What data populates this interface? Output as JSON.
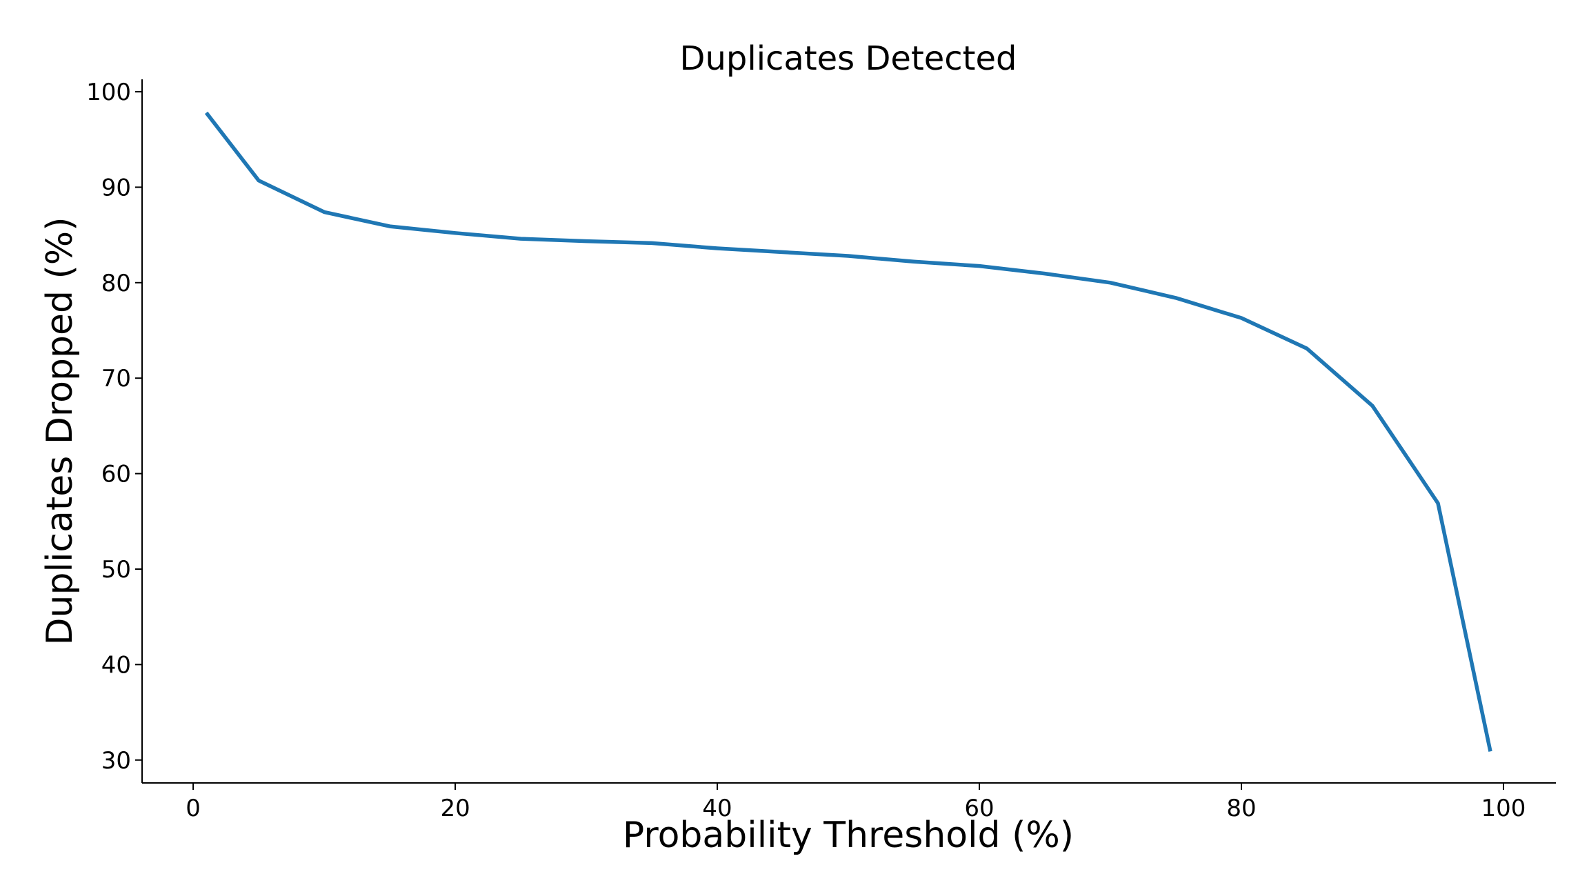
{
  "chart_data": {
    "type": "line",
    "title": "Duplicates Detected",
    "xlabel": "Probability Threshold (%)",
    "ylabel": "Duplicates Dropped (%)",
    "xlim": [
      -3.9,
      104
    ],
    "ylim": [
      27.6,
      101.3
    ],
    "xticks": [
      0,
      20,
      40,
      60,
      80,
      100
    ],
    "yticks": [
      30,
      40,
      50,
      60,
      70,
      80,
      90,
      100
    ],
    "grid": false,
    "legend": "none",
    "colors": {
      "series": "#1f77b4"
    },
    "series": [
      {
        "x": [
          1,
          5,
          10,
          15,
          20,
          25,
          30,
          35,
          40,
          45,
          50,
          55,
          60,
          65,
          70,
          75,
          80,
          85,
          90,
          95,
          99
        ],
        "y": [
          97.8,
          90.7,
          87.4,
          85.9,
          85.2,
          84.6,
          84.35,
          84.15,
          83.6,
          83.2,
          82.8,
          82.2,
          81.75,
          80.95,
          80.0,
          78.4,
          76.3,
          73.1,
          67.1,
          56.9,
          30.9
        ]
      }
    ]
  }
}
